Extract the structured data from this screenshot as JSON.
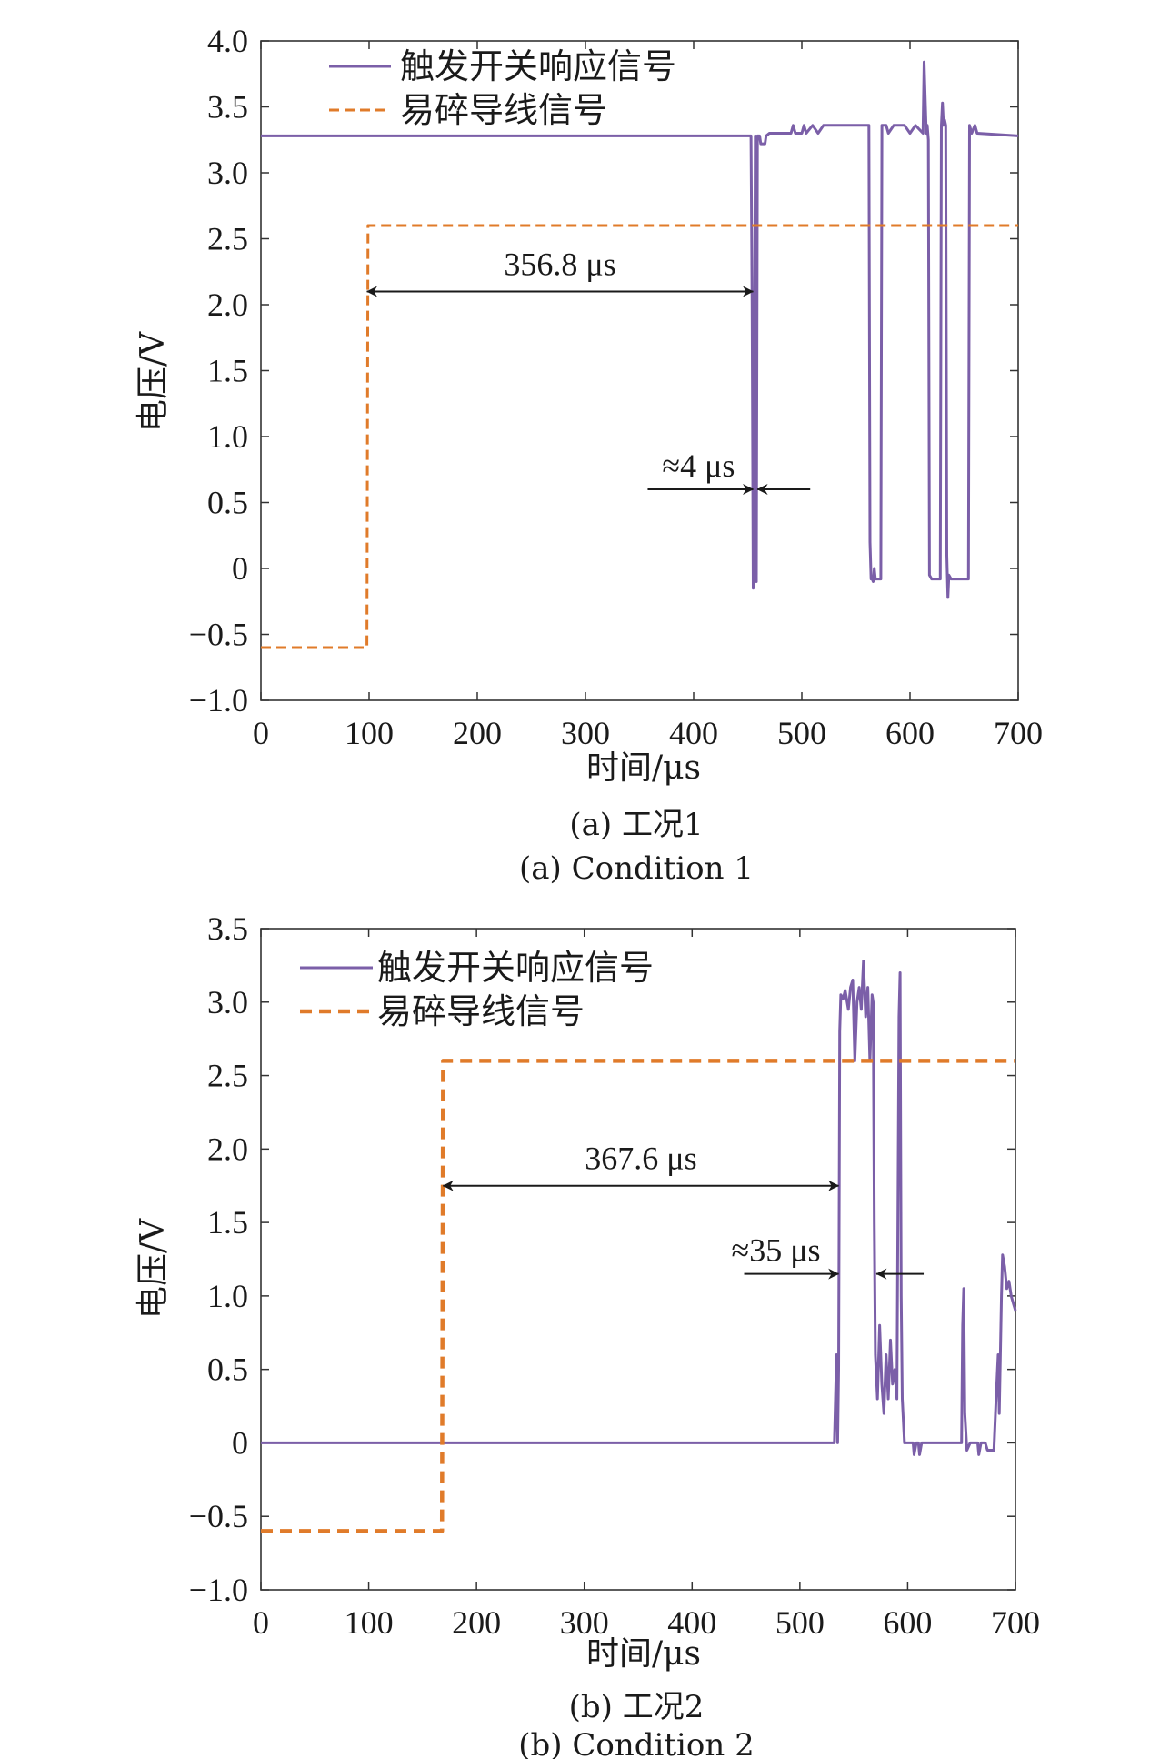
{
  "chart_data": [
    {
      "type": "line",
      "caption_cn": "(a) 工况1",
      "caption_en": "(a) Condition 1",
      "xlabel": "时间/μs",
      "ylabel": "电压/V",
      "xlim": [
        0,
        700
      ],
      "ylim": [
        -1.0,
        4.0
      ],
      "xticks": [
        0,
        100,
        200,
        300,
        400,
        500,
        600,
        700
      ],
      "yticks": [
        -1.0,
        -0.5,
        0,
        0.5,
        1.0,
        1.5,
        2.0,
        2.5,
        3.0,
        3.5,
        4.0
      ],
      "ytick_labels": [
        "−1.0",
        "−0.5",
        "0",
        "0.5",
        "1.0",
        "1.5",
        "2.0",
        "2.5",
        "3.0",
        "3.5",
        "4.0"
      ],
      "legend_position": "top-left",
      "series": [
        {
          "name": "触发开关响应信号",
          "color": "#7b5fa8",
          "style": "solid",
          "points": [
            [
              0,
              3.28
            ],
            [
              452,
              3.28
            ],
            [
              453,
              3.28
            ],
            [
              454,
              2.0
            ],
            [
              455,
              -0.15
            ],
            [
              456,
              0.8
            ],
            [
              457,
              3.28
            ],
            [
              458,
              -0.1
            ],
            [
              459,
              3.28
            ],
            [
              461,
              3.28
            ],
            [
              462,
              3.22
            ],
            [
              466,
              3.22
            ],
            [
              467,
              3.28
            ],
            [
              470,
              3.3
            ],
            [
              490,
              3.3
            ],
            [
              492,
              3.36
            ],
            [
              494,
              3.3
            ],
            [
              500,
              3.3
            ],
            [
              502,
              3.36
            ],
            [
              504,
              3.3
            ],
            [
              510,
              3.36
            ],
            [
              515,
              3.3
            ],
            [
              520,
              3.36
            ],
            [
              535,
              3.36
            ],
            [
              562,
              3.36
            ],
            [
              563,
              0.2
            ],
            [
              564,
              -0.08
            ],
            [
              565,
              -0.08
            ],
            [
              566,
              -0.1
            ],
            [
              567,
              0.0
            ],
            [
              568,
              -0.08
            ],
            [
              573,
              -0.08
            ],
            [
              574,
              3.36
            ],
            [
              578,
              3.36
            ],
            [
              580,
              3.3
            ],
            [
              585,
              3.36
            ],
            [
              595,
              3.36
            ],
            [
              600,
              3.3
            ],
            [
              605,
              3.36
            ],
            [
              612,
              3.3
            ],
            [
              613,
              3.84
            ],
            [
              615,
              3.3
            ],
            [
              616,
              3.36
            ],
            [
              617,
              3.25
            ],
            [
              618,
              -0.05
            ],
            [
              620,
              -0.08
            ],
            [
              628,
              -0.08
            ],
            [
              629,
              3.36
            ],
            [
              630,
              3.53
            ],
            [
              631,
              3.36
            ],
            [
              632,
              3.4
            ],
            [
              633,
              3.36
            ],
            [
              634,
              0.1
            ],
            [
              635,
              -0.22
            ],
            [
              636,
              -0.05
            ],
            [
              638,
              -0.08
            ],
            [
              653,
              -0.08
            ],
            [
              654,
              -0.08
            ],
            [
              655,
              3.36
            ],
            [
              657,
              3.3
            ],
            [
              660,
              3.36
            ],
            [
              662,
              3.3
            ],
            [
              700,
              3.28
            ]
          ]
        },
        {
          "name": "易碎导线信号",
          "color": "#e07b2a",
          "style": "dashed",
          "points": [
            [
              0,
              -0.6
            ],
            [
              98,
              -0.6
            ],
            [
              99,
              2.6
            ],
            [
              700,
              2.6
            ]
          ]
        }
      ],
      "annotations": [
        {
          "label": "356.8 μs",
          "x_from": 98,
          "x_to": 455,
          "y": 2.1
        },
        {
          "label": "≈4 μs",
          "x_from": 455,
          "x_to": 459,
          "y": 0.6
        }
      ]
    },
    {
      "type": "line",
      "caption_cn": "(b) 工况2",
      "caption_en": "(b) Condition 2",
      "xlabel": "时间/μs",
      "ylabel": "电压/V",
      "xlim": [
        0,
        700
      ],
      "ylim": [
        -1.0,
        3.5
      ],
      "xticks": [
        0,
        100,
        200,
        300,
        400,
        500,
        600,
        700
      ],
      "yticks": [
        -1.0,
        -0.5,
        0,
        0.5,
        1.0,
        1.5,
        2.0,
        2.5,
        3.0,
        3.5
      ],
      "ytick_labels": [
        "−1.0",
        "−0.5",
        "0",
        "0.5",
        "1.0",
        "1.5",
        "2.0",
        "2.5",
        "3.0",
        "3.5"
      ],
      "legend_position": "top-left",
      "series": [
        {
          "name": "触发开关响应信号",
          "color": "#7b5fa8",
          "style": "solid",
          "points": [
            [
              0,
              0
            ],
            [
              532,
              0
            ],
            [
              533,
              0.3
            ],
            [
              534,
              0.6
            ],
            [
              535,
              0.0
            ],
            [
              536,
              0.5
            ],
            [
              537,
              2.8
            ],
            [
              538,
              3.05
            ],
            [
              540,
              3.02
            ],
            [
              542,
              3.08
            ],
            [
              545,
              2.95
            ],
            [
              547,
              3.1
            ],
            [
              549,
              3.15
            ],
            [
              551,
              2.6
            ],
            [
              553,
              3.0
            ],
            [
              555,
              3.1
            ],
            [
              557,
              2.95
            ],
            [
              559,
              3.28
            ],
            [
              561,
              2.9
            ],
            [
              563,
              3.1
            ],
            [
              565,
              2.6
            ],
            [
              567,
              3.05
            ],
            [
              568,
              3.0
            ],
            [
              569,
              1.5
            ],
            [
              570,
              0.6
            ],
            [
              572,
              0.3
            ],
            [
              574,
              0.8
            ],
            [
              576,
              0.4
            ],
            [
              578,
              0.2
            ],
            [
              580,
              0.6
            ],
            [
              582,
              0.3
            ],
            [
              584,
              0.7
            ],
            [
              586,
              0.4
            ],
            [
              588,
              0.5
            ],
            [
              590,
              0.3
            ],
            [
              592,
              2.9
            ],
            [
              593,
              3.2
            ],
            [
              594,
              1.0
            ],
            [
              595,
              0.3
            ],
            [
              597,
              0.0
            ],
            [
              600,
              0.0
            ],
            [
              605,
              0.0
            ],
            [
              606,
              -0.08
            ],
            [
              608,
              0.0
            ],
            [
              610,
              0.0
            ],
            [
              611,
              -0.08
            ],
            [
              613,
              0.0
            ],
            [
              640,
              0.0
            ],
            [
              650,
              0.0
            ],
            [
              651,
              0.8
            ],
            [
              652,
              1.05
            ],
            [
              653,
              0.2
            ],
            [
              655,
              -0.05
            ],
            [
              658,
              0.0
            ],
            [
              665,
              0.0
            ],
            [
              666,
              -0.08
            ],
            [
              668,
              0.0
            ],
            [
              672,
              0.0
            ],
            [
              674,
              -0.05
            ],
            [
              680,
              -0.05
            ],
            [
              682,
              0.3
            ],
            [
              684,
              0.6
            ],
            [
              685,
              0.2
            ],
            [
              687,
              1.0
            ],
            [
              688,
              1.28
            ],
            [
              690,
              1.2
            ],
            [
              692,
              1.05
            ],
            [
              694,
              1.1
            ],
            [
              696,
              1.0
            ],
            [
              698,
              0.95
            ],
            [
              700,
              0.9
            ]
          ]
        },
        {
          "name": "易碎导线信号",
          "color": "#e07b2a",
          "style": "dashed",
          "points": [
            [
              0,
              -0.6
            ],
            [
              168,
              -0.6
            ],
            [
              169,
              2.6
            ],
            [
              700,
              2.6
            ]
          ]
        }
      ],
      "annotations": [
        {
          "label": "367.6 μs",
          "x_from": 169,
          "x_to": 536,
          "y": 1.75
        },
        {
          "label": "≈35 μs",
          "x_from": 536,
          "x_to": 571,
          "y": 1.15
        }
      ]
    }
  ]
}
